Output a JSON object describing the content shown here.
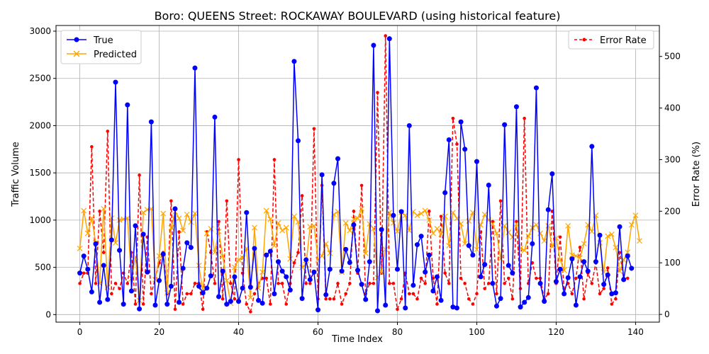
{
  "chart_data": {
    "type": "line",
    "title": "Boro: QUEENS Street: ROCKAWAY BOULEVARD (using historical feature)",
    "xlabel": "Time Index",
    "ylabel_left": "Traffic Volume",
    "ylabel_right": "Error Rate (%)",
    "xlim": [
      -6,
      146
    ],
    "ylim_left": [
      -80,
      3060
    ],
    "ylim_right": [
      -15,
      560
    ],
    "x_ticks": [
      0,
      20,
      40,
      60,
      80,
      100,
      120,
      140
    ],
    "y_ticks_left": [
      0,
      500,
      1000,
      1500,
      2000,
      2500,
      3000
    ],
    "y_ticks_right": [
      0,
      100,
      200,
      300,
      400,
      500
    ],
    "grid": true,
    "legend_left": "top-left",
    "legend_right": "top-right",
    "colors": {
      "true": "#0000ff",
      "predicted": "#ffa500",
      "error": "#ff0000"
    },
    "series": [
      {
        "name": "True",
        "axis": "left",
        "marker": "o",
        "color": "#0000ff",
        "values": [
          440,
          620,
          480,
          240,
          750,
          130,
          520,
          160,
          790,
          2460,
          680,
          110,
          2220,
          250,
          940,
          60,
          850,
          450,
          2040,
          100,
          360,
          640,
          110,
          300,
          1120,
          130,
          490,
          760,
          710,
          2610,
          300,
          230,
          280,
          410,
          2090,
          190,
          460,
          110,
          140,
          400,
          140,
          280,
          1080,
          290,
          700,
          150,
          120,
          630,
          670,
          220,
          560,
          460,
          400,
          260,
          2680,
          1840,
          170,
          580,
          370,
          450,
          50,
          1480,
          210,
          480,
          1390,
          1650,
          460,
          690,
          550,
          950,
          470,
          320,
          160,
          560,
          2850,
          40,
          900,
          100,
          2920,
          1050,
          480,
          1090,
          70,
          2000,
          310,
          740,
          830,
          450,
          630,
          250,
          400,
          150,
          1290,
          1850,
          80,
          70,
          2040,
          1750,
          730,
          630,
          1620,
          400,
          530,
          1370,
          330,
          90,
          170,
          2010,
          520,
          440,
          2200,
          80,
          130,
          180,
          750,
          2400,
          330,
          140,
          1110,
          1490,
          350,
          480,
          220,
          390,
          590,
          100,
          400,
          560,
          460,
          1780,
          560,
          840,
          320,
          420,
          220,
          230,
          930,
          370,
          620,
          490
        ]
      },
      {
        "name": "Predicted",
        "axis": "left",
        "marker": "x",
        "color": "#ffa500",
        "values": [
          700,
          1100,
          860,
          1020,
          760,
          330,
          1120,
          290,
          1020,
          760,
          1000,
          1010,
          1020,
          380,
          610,
          150,
          1080,
          1110,
          1120,
          370,
          620,
          1070,
          230,
          920,
          1090,
          1020,
          890,
          1060,
          980,
          1070,
          520,
          240,
          860,
          910,
          660,
          880,
          620,
          360,
          120,
          500,
          580,
          600,
          700,
          180,
          920,
          280,
          450,
          1100,
          1010,
          730,
          970,
          890,
          920,
          590,
          1040,
          980,
          500,
          530,
          930,
          940,
          580,
          620,
          750,
          650,
          1060,
          1090,
          450,
          970,
          890,
          1010,
          1020,
          1120,
          650,
          960,
          910,
          390,
          450,
          690,
          1080,
          970,
          880,
          1080,
          1050,
          890,
          1090,
          1050,
          1070,
          1100,
          1000,
          860,
          910,
          850,
          1040,
          730,
          1080,
          1020,
          960,
          750,
          990,
          1080,
          690,
          950,
          1060,
          1000,
          960,
          860,
          590,
          940,
          870,
          820,
          960,
          700,
          680,
          830,
          920,
          950,
          860,
          780,
          940,
          720,
          810,
          580,
          470,
          940,
          630,
          620,
          600,
          750,
          950,
          880,
          1050,
          760,
          450,
          830,
          850,
          710,
          460,
          580,
          660,
          950,
          1050,
          780
        ]
      },
      {
        "name": "Error Rate",
        "axis": "right",
        "marker": "o",
        "linestyle": "dashed",
        "color": "#ff0000",
        "values": [
          60,
          80,
          80,
          325,
          60,
          200,
          120,
          355,
          40,
          60,
          50,
          80,
          60,
          120,
          20,
          270,
          20,
          150,
          40,
          70,
          100,
          120,
          40,
          220,
          10,
          160,
          20,
          40,
          40,
          60,
          60,
          10,
          160,
          120,
          60,
          180,
          30,
          220,
          60,
          30,
          300,
          80,
          20,
          5,
          40,
          60,
          70,
          70,
          20,
          300,
          60,
          60,
          20,
          60,
          100,
          120,
          230,
          60,
          60,
          360,
          30,
          250,
          30,
          30,
          30,
          60,
          20,
          40,
          60,
          200,
          80,
          250,
          40,
          60,
          60,
          430,
          80,
          540,
          60,
          60,
          10,
          30,
          80,
          40,
          40,
          30,
          70,
          60,
          200,
          70,
          20,
          190,
          80,
          60,
          380,
          330,
          70,
          60,
          30,
          20,
          40,
          160,
          50,
          60,
          180,
          40,
          220,
          60,
          70,
          30,
          180,
          50,
          380,
          60,
          100,
          70,
          70,
          30,
          40,
          200,
          60,
          150,
          50,
          60,
          40,
          70,
          130,
          30,
          80,
          60,
          100,
          40,
          50,
          90,
          20,
          30,
          120,
          70,
          70
        ]
      }
    ]
  }
}
